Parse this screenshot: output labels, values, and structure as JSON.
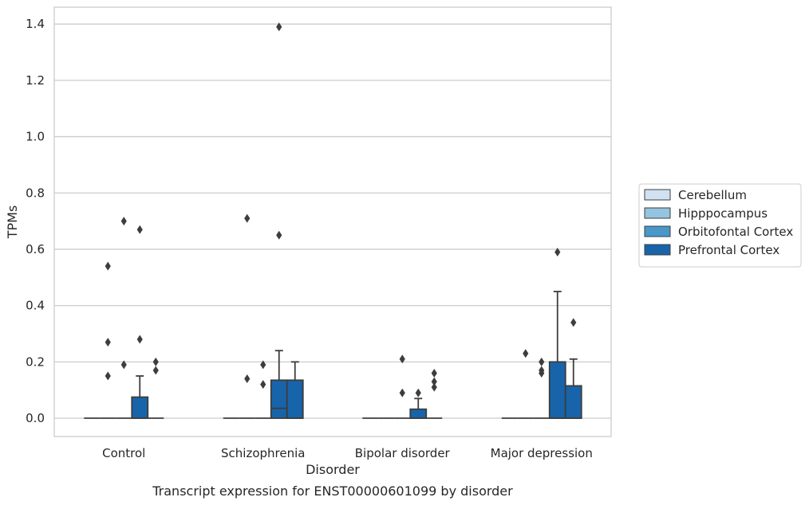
{
  "chart_data": {
    "type": "box",
    "title": "",
    "caption": "Transcript expression for ENST00000601099 by disorder",
    "xlabel": "Disorder",
    "ylabel": "TPMs",
    "ylim": [
      -0.065,
      1.46
    ],
    "yticks": [
      0.0,
      0.2,
      0.4,
      0.6,
      0.8,
      1.0,
      1.2,
      1.4
    ],
    "ytick_labels": [
      "0.0",
      "0.2",
      "0.4",
      "0.6",
      "0.8",
      "1.0",
      "1.2",
      "1.4"
    ],
    "grid": true,
    "legend_position": "center-right",
    "categories": [
      "Control",
      "Schizophrenia",
      "Bipolar disorder",
      "Major depression"
    ],
    "series": [
      {
        "name": "Cerebellum",
        "color": "#d0e1f2",
        "boxes": [
          {
            "q1": 0,
            "median": 0,
            "q3": 0,
            "whisker_low": 0,
            "whisker_high": 0,
            "outliers": []
          },
          {
            "q1": 0,
            "median": 0,
            "q3": 0,
            "whisker_low": 0,
            "whisker_high": 0,
            "outliers": []
          },
          {
            "q1": 0,
            "median": 0,
            "q3": 0,
            "whisker_low": 0,
            "whisker_high": 0,
            "outliers": []
          },
          {
            "q1": 0,
            "median": 0,
            "q3": 0,
            "whisker_low": 0,
            "whisker_high": 0,
            "outliers": []
          }
        ]
      },
      {
        "name": "Hipppocampus",
        "color": "#94c4df",
        "boxes": [
          {
            "q1": 0,
            "median": 0,
            "q3": 0,
            "whisker_low": 0,
            "whisker_high": 0,
            "outliers": [
              0.54,
              0.27,
              0.15
            ]
          },
          {
            "q1": 0,
            "median": 0,
            "q3": 0,
            "whisker_low": 0,
            "whisker_high": 0,
            "outliers": [
              0.71,
              0.14
            ]
          },
          {
            "q1": 0,
            "median": 0,
            "q3": 0,
            "whisker_low": 0,
            "whisker_high": 0,
            "outliers": []
          },
          {
            "q1": 0,
            "median": 0,
            "q3": 0,
            "whisker_low": 0,
            "whisker_high": 0,
            "outliers": [
              0.23
            ]
          }
        ]
      },
      {
        "name": "Orbitofontal Cortex",
        "color": "#4a98c9",
        "boxes": [
          {
            "q1": 0,
            "median": 0,
            "q3": 0,
            "whisker_low": 0,
            "whisker_high": 0,
            "outliers": [
              0.7,
              0.19
            ]
          },
          {
            "q1": 0,
            "median": 0,
            "q3": 0,
            "whisker_low": 0,
            "whisker_high": 0,
            "outliers": [
              0.19,
              0.12
            ]
          },
          {
            "q1": 0,
            "median": 0,
            "q3": 0,
            "whisker_low": 0,
            "whisker_high": 0,
            "outliers": [
              0.21,
              0.09
            ]
          },
          {
            "q1": 0,
            "median": 0,
            "q3": 0,
            "whisker_low": 0,
            "whisker_high": 0,
            "outliers": [
              0.2,
              0.17,
              0.16
            ]
          }
        ]
      },
      {
        "name": "Prefrontal Cortex",
        "color": "#1764ab",
        "boxes": [
          {
            "q1": 0,
            "median": 0,
            "q3": 0.075,
            "whisker_low": 0,
            "whisker_high": 0.15,
            "outliers": [
              0.67,
              0.28
            ]
          },
          {
            "q1": 0,
            "median": 0.035,
            "q3": 0.135,
            "whisker_low": 0,
            "whisker_high": 0.24,
            "outliers": [
              1.39,
              0.65
            ]
          },
          {
            "q1": 0,
            "median": 0,
            "q3": 0.032,
            "whisker_low": 0,
            "whisker_high": 0.07,
            "outliers": [
              0.09
            ]
          },
          {
            "q1": 0,
            "median": 0,
            "q3": 0.2,
            "whisker_low": 0,
            "whisker_high": 0.45,
            "outliers": [
              0.59
            ]
          }
        ]
      },
      {
        "name": "",
        "color": "#1764ab",
        "boxes": [
          {
            "q1": 0,
            "median": 0,
            "q3": 0,
            "whisker_low": 0,
            "whisker_high": 0,
            "outliers": [
              0.2,
              0.17
            ]
          },
          {
            "q1": 0,
            "median": 0,
            "q3": 0.135,
            "whisker_low": 0,
            "whisker_high": 0.2,
            "outliers": []
          },
          {
            "q1": 0,
            "median": 0,
            "q3": 0,
            "whisker_low": 0,
            "whisker_high": 0,
            "outliers": [
              0.16,
              0.13,
              0.11
            ]
          },
          {
            "q1": 0,
            "median": 0,
            "q3": 0.115,
            "whisker_low": 0,
            "whisker_high": 0.21,
            "outliers": [
              0.34
            ]
          }
        ]
      }
    ]
  }
}
